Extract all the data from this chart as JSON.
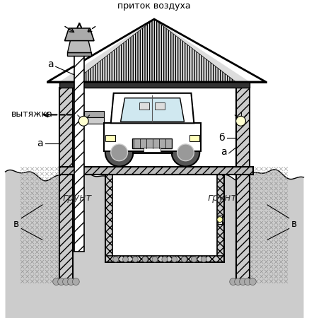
{
  "bg_color": "#ffffff",
  "label_pritok": "приток воздуха",
  "label_vytazhka": "вытяжка",
  "label_grunt_left": "грунт",
  "label_grunt_right": "грунт",
  "label_a1": "а",
  "label_a2": "а",
  "label_a3": "а",
  "label_b": "б",
  "label_v1": "в",
  "label_v2": "в"
}
